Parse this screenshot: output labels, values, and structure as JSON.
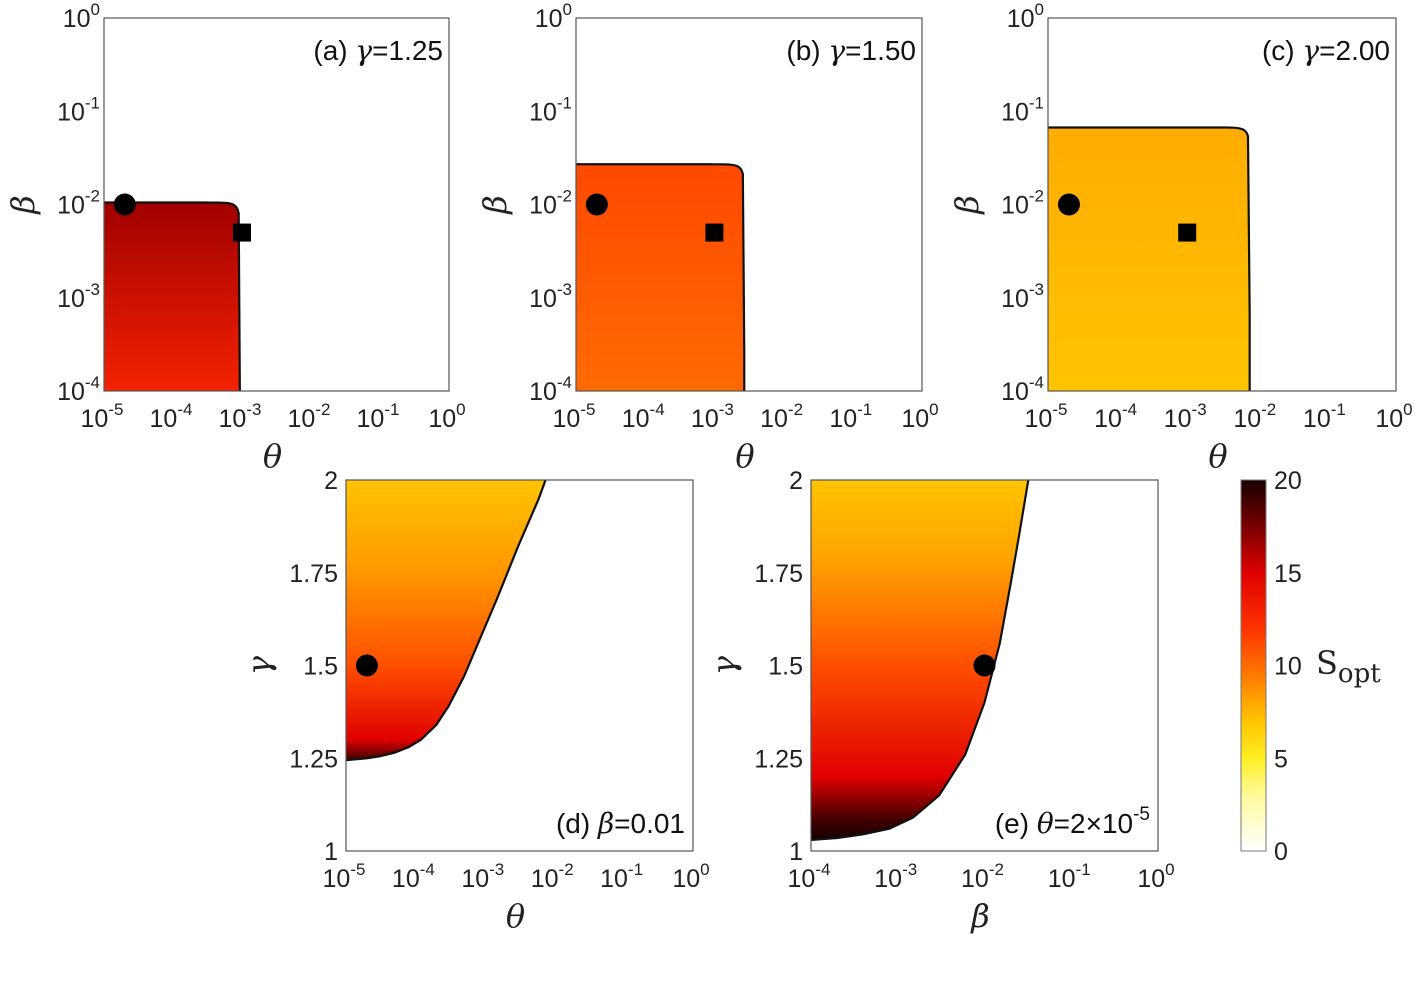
{
  "chart_data": [
    {
      "id": "a",
      "type": "heatmap",
      "annotation": {
        "prefix": "(a) ",
        "symbol": "γ",
        "value": "=1.25"
      },
      "xlabel": "θ",
      "ylabel": "β",
      "xscale": "log",
      "yscale": "log",
      "xlim": [
        1e-05,
        1
      ],
      "ylim": [
        0.0001,
        1
      ],
      "xticks": [
        {
          "base": "10",
          "exp": "-5"
        },
        {
          "base": "10",
          "exp": "-4"
        },
        {
          "base": "10",
          "exp": "-3"
        },
        {
          "base": "10",
          "exp": "-2"
        },
        {
          "base": "10",
          "exp": "-1"
        },
        {
          "base": "10",
          "exp": "0"
        }
      ],
      "yticks": [
        {
          "base": "10",
          "exp": "-4"
        },
        {
          "base": "10",
          "exp": "-3"
        },
        {
          "base": "10",
          "exp": "-2"
        },
        {
          "base": "10",
          "exp": "-1"
        },
        {
          "base": "10",
          "exp": "0"
        }
      ],
      "boundary": {
        "theta_c": 0.00093,
        "beta_c": 0.0105,
        "p": 6
      },
      "color_value": {
        "bottom": 13,
        "top": 16.5
      },
      "markers": [
        {
          "shape": "circle",
          "x": 2e-05,
          "y": 0.01
        },
        {
          "shape": "square",
          "x": 0.001,
          "y": 0.005
        }
      ]
    },
    {
      "id": "b",
      "type": "heatmap",
      "annotation": {
        "prefix": "(b) ",
        "symbol": "γ",
        "value": "=1.50"
      },
      "xlabel": "θ",
      "ylabel": "β",
      "xscale": "log",
      "yscale": "log",
      "xlim": [
        1e-05,
        1
      ],
      "ylim": [
        0.0001,
        1
      ],
      "xticks": [
        {
          "base": "10",
          "exp": "-5"
        },
        {
          "base": "10",
          "exp": "-4"
        },
        {
          "base": "10",
          "exp": "-3"
        },
        {
          "base": "10",
          "exp": "-2"
        },
        {
          "base": "10",
          "exp": "-1"
        },
        {
          "base": "10",
          "exp": "0"
        }
      ],
      "yticks": [
        {
          "base": "10",
          "exp": "-4"
        },
        {
          "base": "10",
          "exp": "-3"
        },
        {
          "base": "10",
          "exp": "-2"
        },
        {
          "base": "10",
          "exp": "-1"
        },
        {
          "base": "10",
          "exp": "0"
        }
      ],
      "boundary": {
        "theta_c": 0.0027,
        "beta_c": 0.027,
        "p": 6
      },
      "color_value": {
        "bottom": 10,
        "top": 11.2
      },
      "markers": [
        {
          "shape": "circle",
          "x": 2e-05,
          "y": 0.01
        },
        {
          "shape": "square",
          "x": 0.001,
          "y": 0.005
        }
      ]
    },
    {
      "id": "c",
      "type": "heatmap",
      "annotation": {
        "prefix": "(c) ",
        "symbol": "γ",
        "value": "=2.00"
      },
      "xlabel": "θ",
      "ylabel": "β",
      "xscale": "log",
      "yscale": "log",
      "xlim": [
        1e-05,
        1
      ],
      "ylim": [
        0.0001,
        1
      ],
      "xticks": [
        {
          "base": "10",
          "exp": "-5"
        },
        {
          "base": "10",
          "exp": "-4"
        },
        {
          "base": "10",
          "exp": "-3"
        },
        {
          "base": "10",
          "exp": "-2"
        },
        {
          "base": "10",
          "exp": "-1"
        },
        {
          "base": "10",
          "exp": "0"
        }
      ],
      "yticks": [
        {
          "base": "10",
          "exp": "-4"
        },
        {
          "base": "10",
          "exp": "-3"
        },
        {
          "base": "10",
          "exp": "-2"
        },
        {
          "base": "10",
          "exp": "-1"
        },
        {
          "base": "10",
          "exp": "0"
        }
      ],
      "boundary": {
        "theta_c": 0.0079,
        "beta_c": 0.067,
        "p": 6
      },
      "color_value": {
        "bottom": 7,
        "top": 7.8
      },
      "markers": [
        {
          "shape": "circle",
          "x": 2e-05,
          "y": 0.01
        },
        {
          "shape": "square",
          "x": 0.001,
          "y": 0.005
        }
      ]
    },
    {
      "id": "d",
      "type": "heatmap",
      "annotation": {
        "prefix": "(d) ",
        "symbol": "β",
        "value": "=0.01"
      },
      "xlabel": "θ",
      "ylabel": "γ",
      "xscale": "log",
      "yscale": "linear",
      "xlim": [
        1e-05,
        1
      ],
      "ylim": [
        1,
        2
      ],
      "xticks": [
        {
          "base": "10",
          "exp": "-5"
        },
        {
          "base": "10",
          "exp": "-4"
        },
        {
          "base": "10",
          "exp": "-3"
        },
        {
          "base": "10",
          "exp": "-2"
        },
        {
          "base": "10",
          "exp": "-1"
        },
        {
          "base": "10",
          "exp": "0"
        }
      ],
      "yticks": [
        {
          "base": "1",
          "exp": ""
        },
        {
          "base": "1.25",
          "exp": ""
        },
        {
          "base": "1.5",
          "exp": ""
        },
        {
          "base": "1.75",
          "exp": ""
        },
        {
          "base": "2",
          "exp": ""
        }
      ],
      "boundary_curve": [
        [
          1e-05,
          1.245
        ],
        [
          2e-05,
          1.25
        ],
        [
          3e-05,
          1.255
        ],
        [
          5e-05,
          1.265
        ],
        [
          8e-05,
          1.28
        ],
        [
          0.00012,
          1.3
        ],
        [
          0.0002,
          1.34
        ],
        [
          0.0003,
          1.39
        ],
        [
          0.0005,
          1.47
        ],
        [
          0.0008,
          1.56
        ],
        [
          0.0015,
          1.68
        ],
        [
          0.003,
          1.82
        ],
        [
          0.006,
          1.95
        ],
        [
          0.0075,
          2.0
        ]
      ],
      "color_gradient": [
        [
          1.245,
          19
        ],
        [
          1.3,
          15
        ],
        [
          1.5,
          11
        ],
        [
          1.75,
          8.5
        ],
        [
          2.0,
          7
        ]
      ],
      "markers": [
        {
          "shape": "circle",
          "x": 2e-05,
          "y": 1.5
        }
      ]
    },
    {
      "id": "e",
      "type": "heatmap",
      "annotation": {
        "prefix": "(e) ",
        "symbol": "θ",
        "value": "=2×10",
        "exp": "-5"
      },
      "xlabel": "β",
      "ylabel": "γ",
      "xscale": "log",
      "yscale": "linear",
      "xlim": [
        0.0001,
        1
      ],
      "ylim": [
        1,
        2
      ],
      "xticks": [
        {
          "base": "10",
          "exp": "-4"
        },
        {
          "base": "10",
          "exp": "-3"
        },
        {
          "base": "10",
          "exp": "-2"
        },
        {
          "base": "10",
          "exp": "-1"
        },
        {
          "base": "10",
          "exp": "0"
        }
      ],
      "yticks": [
        {
          "base": "1",
          "exp": ""
        },
        {
          "base": "1.25",
          "exp": ""
        },
        {
          "base": "1.5",
          "exp": ""
        },
        {
          "base": "1.75",
          "exp": ""
        },
        {
          "base": "2",
          "exp": ""
        }
      ],
      "boundary_curve": [
        [
          0.0001,
          1.03
        ],
        [
          0.0002,
          1.035
        ],
        [
          0.0004,
          1.045
        ],
        [
          0.0008,
          1.06
        ],
        [
          0.0015,
          1.09
        ],
        [
          0.003,
          1.15
        ],
        [
          0.006,
          1.26
        ],
        [
          0.01,
          1.4
        ],
        [
          0.015,
          1.56
        ],
        [
          0.02,
          1.72
        ],
        [
          0.025,
          1.85
        ],
        [
          0.032,
          2.0
        ]
      ],
      "color_gradient": [
        [
          1.03,
          20
        ],
        [
          1.08,
          19
        ],
        [
          1.2,
          15
        ],
        [
          1.5,
          11
        ],
        [
          1.8,
          8
        ],
        [
          2.0,
          7
        ]
      ],
      "markers": [
        {
          "shape": "circle",
          "x": 0.01,
          "y": 1.5
        }
      ]
    }
  ],
  "colorbar": {
    "label": "S",
    "label_sub": "opt",
    "range": [
      0,
      20
    ],
    "ticks": [
      "0",
      "5",
      "10",
      "15",
      "20"
    ],
    "stops": [
      {
        "value": 0,
        "color": "#ffffff"
      },
      {
        "value": 3,
        "color": "#fffa9a"
      },
      {
        "value": 5,
        "color": "#ffee22"
      },
      {
        "value": 7,
        "color": "#ffc400"
      },
      {
        "value": 10,
        "color": "#ff6a00"
      },
      {
        "value": 12,
        "color": "#ff3300"
      },
      {
        "value": 15,
        "color": "#e00000"
      },
      {
        "value": 17,
        "color": "#8c0000"
      },
      {
        "value": 20,
        "color": "#160000"
      }
    ]
  }
}
